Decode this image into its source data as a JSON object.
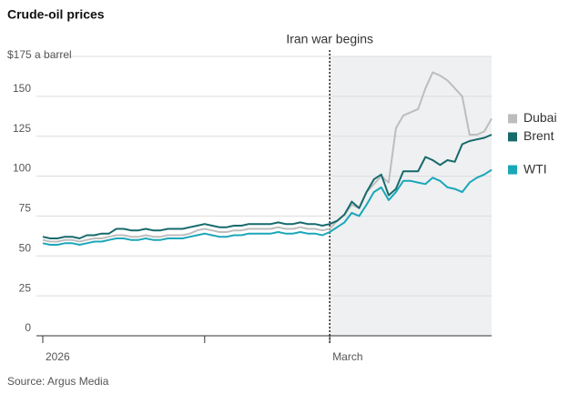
{
  "chart_data": {
    "type": "line",
    "title": "Crude-oil prices",
    "source": "Source: Argus Media",
    "categories": [
      "2026",
      null,
      null,
      null,
      null,
      null,
      null,
      null,
      null,
      null,
      null,
      null,
      null,
      null,
      null,
      null,
      null,
      null,
      null,
      null,
      null,
      null,
      null,
      null,
      null,
      null,
      null,
      null,
      null,
      null,
      null,
      null,
      null,
      null,
      null,
      null,
      null,
      null,
      null,
      "March",
      null,
      null,
      null,
      null,
      null,
      null,
      null,
      null,
      null,
      null,
      null,
      null,
      null,
      null,
      null,
      null,
      null,
      null,
      null,
      null,
      null,
      null
    ],
    "xticks": [
      0,
      22,
      39
    ],
    "annotations": [
      {
        "label": "Iran war begins",
        "category_index": 39
      }
    ],
    "series": [
      {
        "name": "Dubai",
        "color": "#bdbdbd",
        "values": [
          60,
          59,
          59,
          60,
          60,
          59,
          60,
          61,
          61,
          62,
          63,
          63,
          62,
          62,
          63,
          62,
          62,
          63,
          63,
          63,
          64,
          66,
          67,
          66,
          65,
          65,
          66,
          66,
          67,
          67,
          67,
          67,
          68,
          67,
          67,
          68,
          67,
          67,
          66,
          67,
          72,
          76,
          82,
          80,
          90,
          95,
          100,
          96,
          130,
          138,
          140,
          142,
          155,
          165,
          163,
          160,
          155,
          150,
          126,
          126,
          128,
          136
        ]
      },
      {
        "name": "Brent",
        "color": "#17696b",
        "values": [
          62,
          61,
          61,
          62,
          62,
          61,
          63,
          63,
          64,
          64,
          67,
          67,
          66,
          66,
          67,
          66,
          66,
          67,
          67,
          67,
          68,
          69,
          70,
          69,
          68,
          68,
          69,
          69,
          70,
          70,
          70,
          70,
          71,
          70,
          70,
          71,
          70,
          70,
          69,
          70,
          72,
          76,
          84,
          80,
          90,
          98,
          101,
          88,
          92,
          103,
          103,
          103,
          112,
          110,
          107,
          110,
          109,
          120,
          122,
          123,
          124,
          126
        ]
      },
      {
        "name": "WTI",
        "color": "#1aa7b8",
        "values": [
          58,
          57,
          57,
          58,
          58,
          57,
          58,
          59,
          59,
          60,
          61,
          61,
          60,
          60,
          61,
          60,
          60,
          61,
          61,
          61,
          62,
          63,
          64,
          63,
          62,
          62,
          63,
          63,
          64,
          64,
          64,
          64,
          65,
          64,
          64,
          65,
          64,
          64,
          63,
          65,
          68,
          71,
          77,
          75,
          82,
          90,
          93,
          85,
          90,
          97,
          97,
          96,
          95,
          99,
          97,
          93,
          92,
          90,
          96,
          99,
          101,
          104
        ]
      }
    ],
    "ylim": [
      0,
      175
    ],
    "yticks": [
      0,
      25,
      50,
      75,
      100,
      125,
      150,
      {
        "value": 175,
        "label": "$175 a barrel"
      }
    ],
    "grid": true
  }
}
